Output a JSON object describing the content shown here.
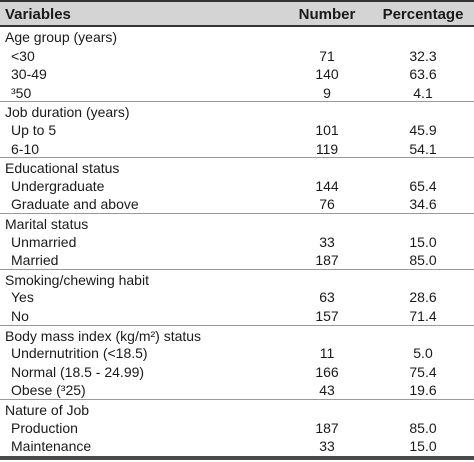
{
  "headers": {
    "variables": "Variables",
    "number": "Number",
    "percentage": "Percentage"
  },
  "rows": [
    {
      "label": "Age group (years)",
      "sub": false
    },
    {
      "label": "<30",
      "number": "71",
      "percentage": "32.3",
      "sub": true
    },
    {
      "label": "30-49",
      "number": "140",
      "percentage": "63.6",
      "sub": true
    },
    {
      "label": "³50",
      "number": "9",
      "percentage": "4.1",
      "sub": true
    },
    {
      "label": "Job duration (years)",
      "sub": false
    },
    {
      "label": "Up to 5",
      "number": "101",
      "percentage": "45.9",
      "sub": true
    },
    {
      "label": "6-10",
      "number": "119",
      "percentage": "54.1",
      "sub": true
    },
    {
      "label": "Educational status",
      "sub": false
    },
    {
      "label": "Undergraduate",
      "number": "144",
      "percentage": "65.4",
      "sub": true
    },
    {
      "label": "Graduate and above",
      "number": "76",
      "percentage": "34.6",
      "sub": true
    },
    {
      "label": "Marital status",
      "sub": false
    },
    {
      "label": "Unmarried",
      "number": "33",
      "percentage": "15.0",
      "sub": true
    },
    {
      "label": "Married",
      "number": "187",
      "percentage": "85.0",
      "sub": true
    },
    {
      "label": "Smoking/chewing habit",
      "sub": false
    },
    {
      "label": "Yes",
      "number": "63",
      "percentage": "28.6",
      "sub": true
    },
    {
      "label": "No",
      "number": "157",
      "percentage": "71.4",
      "sub": true
    },
    {
      "label": "Body mass index (kg/m²) status",
      "sub": false
    },
    {
      "label": "Undernutrition (<18.5)",
      "number": "11",
      "percentage": "5.0",
      "sub": true
    },
    {
      "label": "Normal (18.5 - 24.99)",
      "number": "166",
      "percentage": "75.4",
      "sub": true
    },
    {
      "label": "Obese (³25)",
      "number": "43",
      "percentage": "19.6",
      "sub": true
    },
    {
      "label": "Nature of Job",
      "sub": false
    },
    {
      "label": "Production",
      "number": "187",
      "percentage": "85.0",
      "sub": true
    },
    {
      "label": "Maintenance",
      "number": "33",
      "percentage": "15.0",
      "sub": true
    }
  ]
}
